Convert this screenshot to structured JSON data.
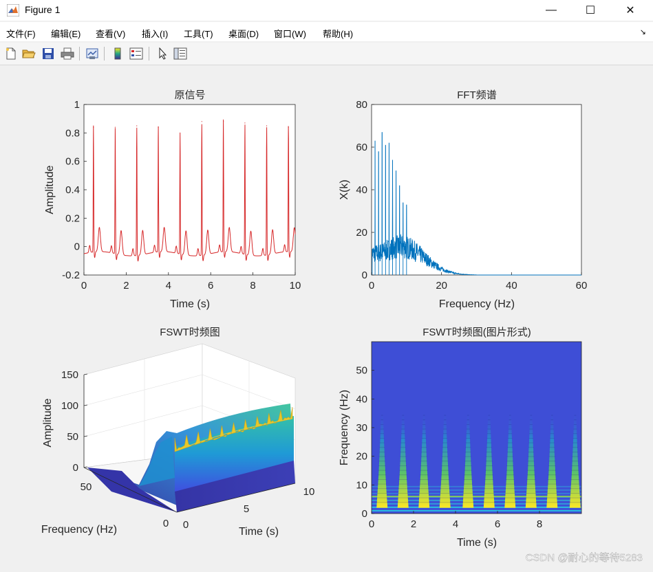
{
  "window": {
    "title": "Figure 1",
    "controls": [
      "—",
      "☐",
      "✕"
    ]
  },
  "menu": {
    "items": [
      "文件(F)",
      "编辑(E)",
      "查看(V)",
      "插入(I)",
      "工具(T)",
      "桌面(D)",
      "窗口(W)",
      "帮助(H)"
    ],
    "overflow": "↘"
  },
  "toolbar": {
    "buttons": [
      "new-figure-icon",
      "open-folder-icon",
      "save-icon",
      "print-icon",
      "link-plot-icon",
      "colorbar-icon",
      "legend-icon",
      "pointer-icon",
      "property-inspector-icon"
    ]
  },
  "chart_data": [
    {
      "type": "line",
      "title": "原信号",
      "xlabel": "Time (s)",
      "ylabel": "Amplitude",
      "xlim": [
        0,
        10
      ],
      "ylim": [
        -0.2,
        1
      ],
      "xticks": [
        "0",
        "2",
        "4",
        "6",
        "8",
        "10"
      ],
      "yticks": [
        "-0.2",
        "0",
        "0.2",
        "0.4",
        "0.6",
        "0.8",
        "1"
      ],
      "color": "#d62728",
      "peaks": [
        {
          "x": 0.45,
          "y": 0.84
        },
        {
          "x": 1.48,
          "y": 0.84
        },
        {
          "x": 2.5,
          "y": 0.85
        },
        {
          "x": 3.52,
          "y": 0.84
        },
        {
          "x": 4.55,
          "y": 0.8
        },
        {
          "x": 5.58,
          "y": 0.88
        },
        {
          "x": 6.6,
          "y": 0.88
        },
        {
          "x": 7.62,
          "y": 0.87
        },
        {
          "x": 8.65,
          "y": 0.85
        },
        {
          "x": 9.68,
          "y": 0.84
        }
      ]
    },
    {
      "type": "line",
      "title": "FFT频谱",
      "xlabel": "Frequency (Hz)",
      "ylabel": "X(k)",
      "xlim": [
        0,
        60
      ],
      "ylim": [
        0,
        80
      ],
      "xticks": [
        "0",
        "20",
        "40",
        "60"
      ],
      "yticks": [
        "0",
        "20",
        "40",
        "60",
        "80"
      ],
      "color": "#0072bd",
      "peaks": [
        {
          "x": 1.0,
          "y": 63
        },
        {
          "x": 2.0,
          "y": 58
        },
        {
          "x": 3.0,
          "y": 67
        },
        {
          "x": 4.0,
          "y": 61
        },
        {
          "x": 5.0,
          "y": 62
        },
        {
          "x": 6.0,
          "y": 54
        },
        {
          "x": 7.0,
          "y": 49
        },
        {
          "x": 8.0,
          "y": 42
        },
        {
          "x": 9.0,
          "y": 34
        },
        {
          "x": 10.0,
          "y": 33
        }
      ]
    },
    {
      "type": "surface",
      "title": "FSWT时频图",
      "xlabel": "Time (s)",
      "ylabel": "Frequency (Hz)",
      "zlabel": "Amplitude",
      "zticks": [
        "0",
        "50",
        "100",
        "150"
      ],
      "yticks": [
        "50",
        "0"
      ],
      "xticks": [
        "0",
        "5",
        "10"
      ]
    },
    {
      "type": "heatmap",
      "title": "FSWT时频图(图片形式)",
      "xlabel": "Time (s)",
      "ylabel": "Frequency (Hz)",
      "xlim": [
        0,
        10
      ],
      "ylim": [
        0,
        60
      ],
      "xticks": [
        "0",
        "2",
        "4",
        "6",
        "8"
      ],
      "yticks": [
        "0",
        "10",
        "20",
        "30",
        "40",
        "50"
      ],
      "bursts_time": [
        0.5,
        1.5,
        2.5,
        3.5,
        4.6,
        5.6,
        6.6,
        7.6,
        8.6,
        9.7
      ],
      "burst_top_freq": 36
    }
  ],
  "watermark": "CSDN @耐心的等待5283"
}
